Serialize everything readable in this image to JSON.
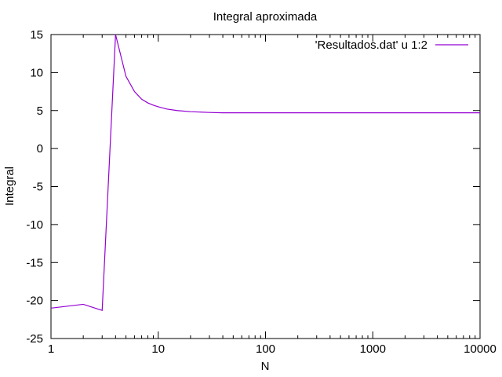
{
  "chart_data": {
    "type": "line",
    "title": "Integral aproximada",
    "xlabel": "N",
    "ylabel": "Integral",
    "xscale": "log",
    "xlim": [
      1,
      10000
    ],
    "ylim": [
      -25,
      15
    ],
    "xticks": [
      1,
      10,
      100,
      1000,
      10000
    ],
    "xtick_labels": [
      "1",
      "10",
      "100",
      "1000",
      "10000"
    ],
    "yticks": [
      -25,
      -20,
      -15,
      -10,
      -5,
      0,
      5,
      10,
      15
    ],
    "ytick_labels": [
      "-25",
      "-20",
      "-15",
      "-10",
      "-5",
      "0",
      "5",
      "10",
      "15"
    ],
    "grid": false,
    "legend_position": "top-right",
    "series": [
      {
        "name": "'Resultados.dat' u 1:2",
        "color": "#9400d3",
        "x": [
          1,
          2,
          3,
          4,
          5,
          6,
          7,
          8,
          9,
          10,
          12,
          15,
          20,
          30,
          40,
          60,
          100,
          200,
          500,
          1000,
          2000,
          5000,
          10000
        ],
        "y": [
          -21.0,
          -20.5,
          -21.3,
          15.0,
          9.5,
          7.5,
          6.5,
          6.0,
          5.7,
          5.5,
          5.2,
          5.0,
          4.85,
          4.75,
          4.7,
          4.7,
          4.7,
          4.7,
          4.7,
          4.7,
          4.7,
          4.7,
          4.7
        ]
      }
    ]
  }
}
